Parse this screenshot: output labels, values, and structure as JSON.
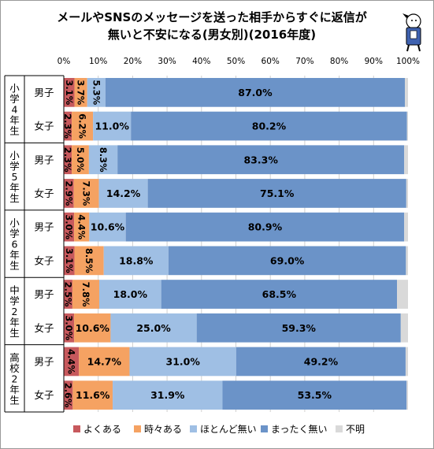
{
  "chart_data": {
    "type": "bar",
    "stacked": "percent",
    "orientation": "horizontal",
    "title_lines": [
      "メールやSNSのメッセージを送った相手からすぐに返信が",
      "無いと不安になる(男女別)(2016年度)"
    ],
    "x_ticks": [
      "0%",
      "10%",
      "20%",
      "30%",
      "40%",
      "50%",
      "60%",
      "70%",
      "80%",
      "90%",
      "100%"
    ],
    "xlim": [
      0,
      100
    ],
    "grid": "vertical",
    "legend_position": "bottom",
    "groups": [
      {
        "label": "小学4年生",
        "rows": [
          "男子",
          "女子"
        ]
      },
      {
        "label": "小学5年生",
        "rows": [
          "男子",
          "女子"
        ]
      },
      {
        "label": "小学6年生",
        "rows": [
          "男子",
          "女子"
        ]
      },
      {
        "label": "中学2年生",
        "rows": [
          "男子",
          "女子"
        ]
      },
      {
        "label": "高校2年生",
        "rows": [
          "男子",
          "女子"
        ]
      }
    ],
    "series": [
      {
        "name": "よくある",
        "color": "#c7595d",
        "values": [
          3.1,
          2.3,
          2.3,
          2.9,
          3.0,
          3.1,
          2.5,
          3.0,
          4.4,
          2.6
        ],
        "labels": [
          "3.1%",
          "2.3%",
          "2.3%",
          "2.9%",
          "3.0%",
          "3.1%",
          "2.5%",
          "3.0%",
          "4.4%",
          "2.6%"
        ]
      },
      {
        "name": "時々ある",
        "color": "#f5a262",
        "values": [
          3.7,
          6.2,
          5.0,
          7.3,
          4.4,
          8.5,
          7.8,
          10.6,
          14.7,
          11.6
        ],
        "labels": [
          "3.7%",
          "6.2%",
          "5.0%",
          "7.3%",
          "4.4%",
          "8.5%",
          "7.8%",
          "10.6%",
          "14.7%",
          "11.6%"
        ]
      },
      {
        "name": "ほとんど無い",
        "color": "#9fbfe4",
        "values": [
          5.3,
          11.0,
          8.3,
          14.2,
          10.6,
          18.8,
          18.0,
          25.0,
          31.0,
          31.9
        ],
        "labels": [
          "5.3%",
          "11.0%",
          "8.3%",
          "14.2%",
          "10.6%",
          "18.8%",
          "18.0%",
          "25.0%",
          "31.0%",
          "31.9%"
        ]
      },
      {
        "name": "まったく無い",
        "color": "#6b93c8",
        "values": [
          87.0,
          80.2,
          83.3,
          75.1,
          80.9,
          69.0,
          68.5,
          59.3,
          49.2,
          53.5
        ],
        "labels": [
          "87.0%",
          "80.2%",
          "83.3%",
          "75.1%",
          "80.9%",
          "69.0%",
          "68.5%",
          "59.3%",
          "49.2%",
          "53.5%"
        ]
      },
      {
        "name": "不明",
        "color": "#d9d9d9",
        "values": [
          0.9,
          0.3,
          1.1,
          0.5,
          1.1,
          0.6,
          3.2,
          2.1,
          0.7,
          0.4
        ],
        "labels": [
          "",
          "",
          "",
          "",
          "",
          "",
          "",
          "",
          "",
          ""
        ]
      }
    ]
  }
}
